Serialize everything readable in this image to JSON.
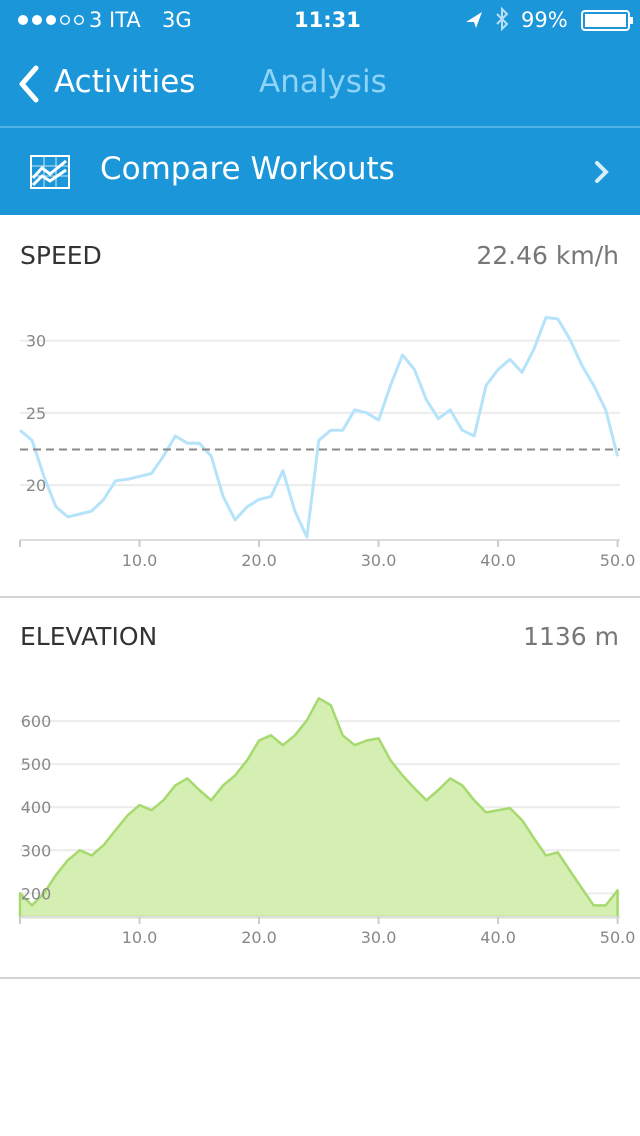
{
  "status_bar": {
    "carrier": "3 ITA",
    "network": "3G",
    "time": "11:31",
    "battery": "99%"
  },
  "nav": {
    "back": "Activities",
    "title": "Analysis"
  },
  "compare": {
    "label": "Compare Workouts"
  },
  "charts": [
    {
      "type": "line",
      "title": "SPEED",
      "summary": "22.46 km/h",
      "color": "#b5e4fa",
      "reference_line": 22.46,
      "reference_color": "#8a8a8a",
      "x": [
        0,
        1,
        2,
        3,
        4,
        5,
        6,
        7,
        8,
        9,
        10,
        11,
        12,
        13,
        14,
        15,
        16,
        17,
        18,
        19,
        20,
        21,
        22,
        23,
        24,
        25,
        26,
        27,
        28,
        29,
        30,
        31,
        32,
        33,
        34,
        35,
        36,
        37,
        38,
        39,
        40,
        41,
        42,
        43,
        44,
        45,
        46,
        47,
        48,
        49,
        50
      ],
      "values": [
        23.8,
        23.1,
        20.6,
        18.5,
        17.8,
        18.0,
        18.2,
        19.0,
        20.3,
        20.4,
        20.6,
        20.8,
        22.0,
        23.4,
        22.9,
        22.9,
        22.0,
        19.2,
        17.6,
        18.5,
        19.0,
        19.2,
        21.0,
        18.2,
        16.4,
        23.1,
        23.8,
        23.8,
        25.2,
        25.0,
        24.5,
        26.9,
        29.0,
        28.0,
        25.9,
        24.6,
        25.2,
        23.8,
        23.4,
        26.9,
        28.0,
        28.7,
        27.8,
        29.4,
        31.6,
        31.5,
        30.1,
        28.3,
        26.9,
        25.2,
        22.0
      ],
      "xlim": [
        0,
        50.2
      ],
      "ylim": [
        16.2,
        33.5
      ],
      "xticks": [
        {
          "value": 10,
          "label": "10.0"
        },
        {
          "value": 20,
          "label": "20.0"
        },
        {
          "value": 30,
          "label": "30.0"
        },
        {
          "value": 40,
          "label": "40.0"
        },
        {
          "value": 50,
          "label": "50.0"
        }
      ],
      "yticks": [
        20,
        25,
        30
      ],
      "grid": true
    },
    {
      "type": "area",
      "title": "ELEVATION",
      "summary": "1136 m",
      "color": "#a6d96e",
      "fill": "#d5efb3",
      "x": [
        0,
        1,
        2,
        3,
        4,
        5,
        6,
        7,
        8,
        9,
        10,
        11,
        12,
        13,
        14,
        15,
        16,
        17,
        18,
        19,
        20,
        21,
        22,
        23,
        24,
        25,
        26,
        27,
        28,
        29,
        30,
        31,
        32,
        33,
        34,
        35,
        36,
        37,
        38,
        39,
        40,
        41,
        42,
        43,
        44,
        45,
        46,
        47,
        48,
        49,
        50
      ],
      "values": [
        200,
        172,
        200,
        242,
        277,
        300,
        288,
        312,
        347,
        381,
        405,
        393,
        416,
        451,
        467,
        440,
        416,
        451,
        474,
        509,
        555,
        567,
        544,
        567,
        602,
        653,
        637,
        567,
        544,
        555,
        560,
        509,
        474,
        444,
        416,
        440,
        467,
        451,
        416,
        388,
        393,
        398,
        370,
        328,
        288,
        295,
        253,
        212,
        172,
        172,
        207
      ],
      "xlim": [
        0,
        50.2
      ],
      "ylim": [
        145,
        742
      ],
      "xticks": [
        {
          "value": 10,
          "label": "10.0"
        },
        {
          "value": 20,
          "label": "20.0"
        },
        {
          "value": 30,
          "label": "30.0"
        },
        {
          "value": 40,
          "label": "40.0"
        },
        {
          "value": 50,
          "label": "50.0"
        }
      ],
      "yticks": [
        200,
        300,
        400,
        500,
        600
      ],
      "grid": true
    }
  ]
}
